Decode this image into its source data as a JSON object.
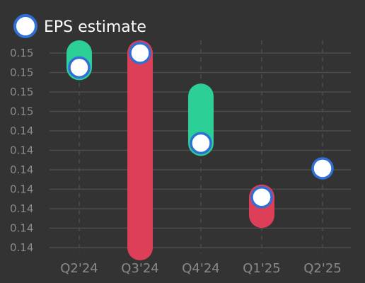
{
  "legend": {
    "label": "EPS estimate",
    "marker_fill": "#ffffff",
    "marker_stroke": "#2f6fd6"
  },
  "colors": {
    "beat": "#2ccf95",
    "miss": "#dc3f57",
    "grid": "#4d4d4d",
    "tick_text": "#8a8a8a"
  },
  "chart_data": {
    "type": "range-bar",
    "categories": [
      "Q2'24",
      "Q3'24",
      "Q4'24",
      "Q1'25",
      "Q2'25"
    ],
    "y_tick_labels": [
      "0.15",
      "0.15",
      "0.15",
      "0.15",
      "0.14",
      "0.14",
      "0.14",
      "0.14",
      "0.14",
      "0.14",
      "0.14"
    ],
    "ylim": [
      0.1396,
      0.1504
    ],
    "estimate": [
      0.1496,
      0.1504,
      0.1454,
      0.1424,
      0.144
    ],
    "actual": [
      0.1504,
      0.1396,
      0.148,
      0.1414,
      null
    ],
    "grid": true,
    "legend_position": "top-left"
  }
}
